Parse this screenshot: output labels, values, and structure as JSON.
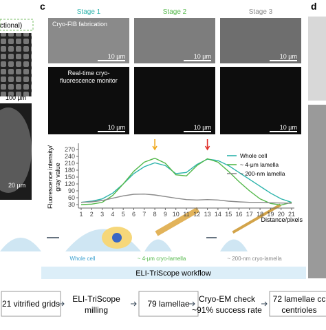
{
  "panel_labels": {
    "c": "c",
    "d": "d"
  },
  "left_panel": {
    "header": "ctional)",
    "scale_top": "100 µm",
    "scale_bottom": "20 µm"
  },
  "stages": [
    {
      "title": "Stage 1",
      "scale": "10 µm"
    },
    {
      "title": "Stage 2",
      "scale": "10 µm"
    },
    {
      "title": "Stage 3",
      "scale": "10 µm"
    }
  ],
  "fib_caption": "Cryo-FIB fabrication",
  "monitor_caption": [
    "Real-time cryo-",
    "fluorescence monitor"
  ],
  "fluo_scales": [
    "10 µm",
    "10 µm",
    "10 µm"
  ],
  "chart_data": {
    "type": "line",
    "y_label": [
      "Fluorescence intensity/",
      "gray value"
    ],
    "x_label": "Distance/pixels",
    "x": [
      1,
      2,
      3,
      4,
      5,
      6,
      7,
      8,
      9,
      10,
      11,
      12,
      13,
      14,
      15,
      16,
      17,
      18,
      19,
      20,
      21
    ],
    "xticks": [
      1,
      2,
      3,
      4,
      5,
      6,
      7,
      8,
      9,
      10,
      11,
      12,
      13,
      14,
      15,
      16,
      17,
      18,
      19,
      20,
      21
    ],
    "xlim": [
      1,
      21
    ],
    "ylim": [
      15,
      285
    ],
    "yticks": [
      30,
      60,
      90,
      120,
      150,
      180,
      210,
      240,
      270
    ],
    "series": [
      {
        "name": "Whole cell",
        "color": "#2bb3ab",
        "values": [
          40,
          45,
          55,
          80,
          120,
          165,
          195,
          212,
          200,
          165,
          170,
          205,
          228,
          222,
          200,
          170,
          140,
          110,
          80,
          55,
          40
        ]
      },
      {
        "name": "~ 4-μm lamella",
        "color": "#53b84a",
        "values": [
          30,
          32,
          40,
          70,
          120,
          175,
          215,
          232,
          210,
          160,
          155,
          200,
          230,
          215,
          175,
          130,
          90,
          55,
          35,
          28,
          40
        ]
      },
      {
        "name": "~ 200-nm lamella",
        "color": "#8a8a8a",
        "values": [
          40,
          42,
          48,
          58,
          68,
          75,
          76,
          72,
          65,
          58,
          52,
          50,
          52,
          50,
          45,
          42,
          40,
          40,
          38,
          37,
          36
        ]
      }
    ],
    "markers": [
      {
        "x": 8,
        "color": "#f0a81c"
      },
      {
        "x": 13,
        "color": "#e0302a"
      }
    ],
    "legend": "upper right"
  },
  "workflow": {
    "labels": [
      "Whole cell",
      "~ 4-μm cryo-lamella",
      "~ 200-nm cryo-lamella"
    ],
    "banner": "ELI-TriScope workflow"
  },
  "pipeline": [
    [
      "21 vitrified grids"
    ],
    [
      "ELI-TriScope",
      "milling"
    ],
    [
      "79 lamellae"
    ],
    [
      "Cryo-EM check",
      "~91% success rate"
    ],
    [
      "72 lamellae cc",
      "centrioles"
    ]
  ]
}
